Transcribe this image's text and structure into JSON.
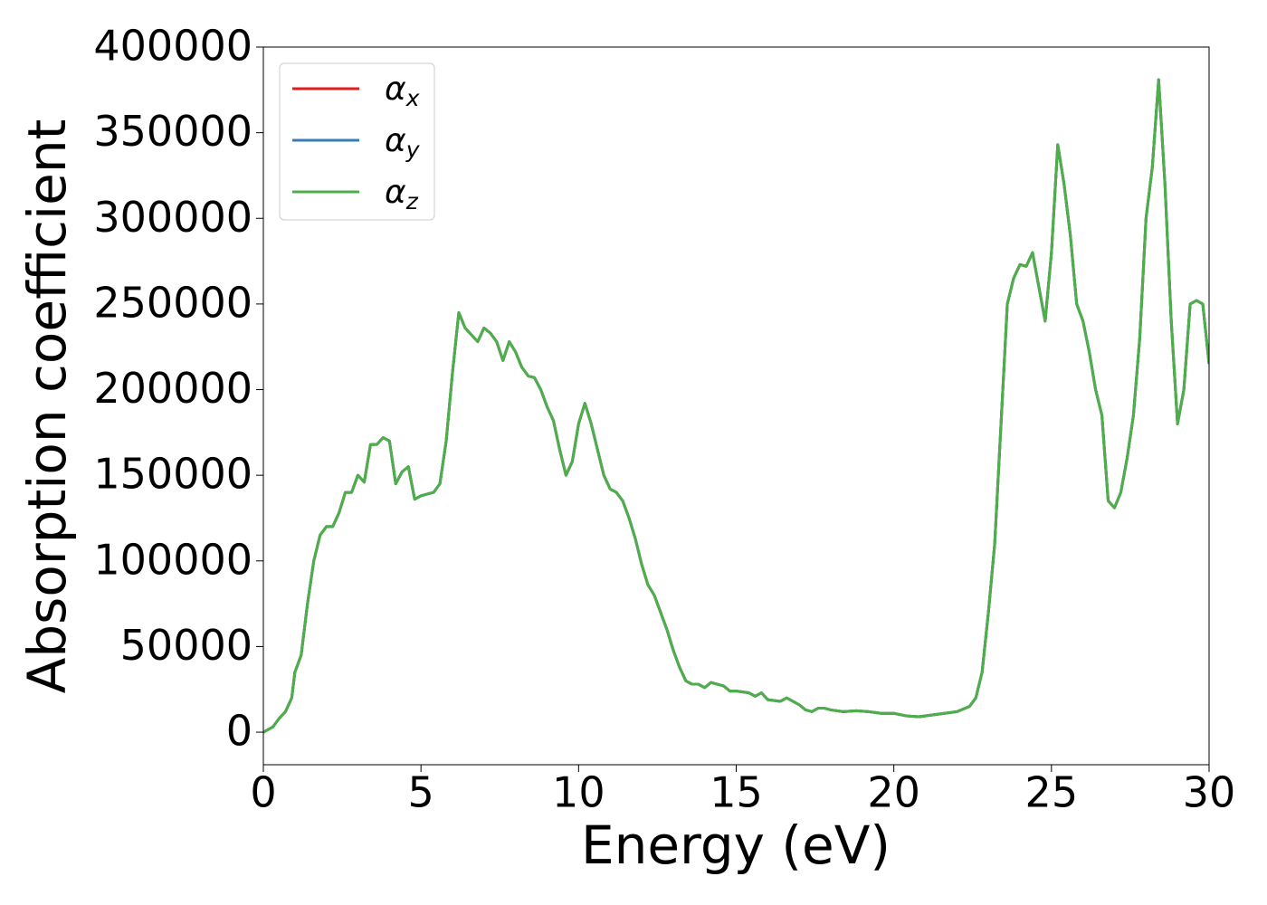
{
  "chart_data": {
    "type": "line",
    "xlabel": "Energy (eV)",
    "ylabel": "Absorption coefficient",
    "x": [
      0,
      0.3,
      0.5,
      0.7,
      0.9,
      1.0,
      1.2,
      1.4,
      1.6,
      1.8,
      2.0,
      2.2,
      2.4,
      2.6,
      2.8,
      3.0,
      3.2,
      3.4,
      3.6,
      3.8,
      4.0,
      4.2,
      4.4,
      4.6,
      4.8,
      5.0,
      5.4,
      5.6,
      5.8,
      6.0,
      6.2,
      6.4,
      6.6,
      6.8,
      7.0,
      7.2,
      7.4,
      7.6,
      7.8,
      8.0,
      8.2,
      8.4,
      8.6,
      8.8,
      9.0,
      9.2,
      9.4,
      9.6,
      9.8,
      10.0,
      10.2,
      10.4,
      10.6,
      10.8,
      11.0,
      11.2,
      11.4,
      11.6,
      11.8,
      12.0,
      12.2,
      12.4,
      12.6,
      12.8,
      13.0,
      13.2,
      13.4,
      13.6,
      13.8,
      14.0,
      14.2,
      14.4,
      14.6,
      14.8,
      15.0,
      15.4,
      15.6,
      15.8,
      16.0,
      16.4,
      16.6,
      16.8,
      17.0,
      17.2,
      17.4,
      17.6,
      17.8,
      18.0,
      18.4,
      18.8,
      19.2,
      19.6,
      20.0,
      20.4,
      20.8,
      21.2,
      21.6,
      22.0,
      22.4,
      22.6,
      22.8,
      23.0,
      23.2,
      23.4,
      23.6,
      23.8,
      24.0,
      24.2,
      24.4,
      24.6,
      24.8,
      25.0,
      25.2,
      25.4,
      25.6,
      25.8,
      26.0,
      26.2,
      26.4,
      26.6,
      26.8,
      27.0,
      27.2,
      27.4,
      27.6,
      27.8,
      28.0,
      28.2,
      28.4,
      28.6,
      28.8,
      29.0,
      29.2,
      29.4,
      29.6,
      29.8,
      30.0
    ],
    "series": [
      {
        "name": "αx",
        "color": "#e41a1c",
        "values": [
          0,
          3000,
          8000,
          12000,
          20000,
          35000,
          45000,
          75000,
          100000,
          115000,
          120000,
          120000,
          128000,
          140000,
          140000,
          150000,
          146000,
          168000,
          168000,
          172000,
          170000,
          145000,
          152000,
          155000,
          136000,
          138000,
          140000,
          145000,
          170000,
          210000,
          245000,
          236000,
          232000,
          228000,
          236000,
          233000,
          228000,
          217000,
          228000,
          222000,
          213000,
          208000,
          207000,
          200000,
          190000,
          182000,
          165000,
          150000,
          158000,
          180000,
          192000,
          180000,
          165000,
          150000,
          142000,
          140000,
          135000,
          125000,
          113000,
          98000,
          86000,
          80000,
          70000,
          60000,
          48000,
          38000,
          30000,
          28000,
          28000,
          26000,
          29000,
          28000,
          27000,
          24000,
          24000,
          23000,
          21000,
          23000,
          19000,
          18000,
          20000,
          18000,
          16000,
          13000,
          12000,
          14000,
          14000,
          13000,
          12000,
          12500,
          12000,
          11000,
          11000,
          9500,
          9000,
          10000,
          11000,
          12000,
          15000,
          20000,
          35000,
          70000,
          110000,
          180000,
          250000,
          265000,
          273000,
          272000,
          280000,
          260000,
          240000,
          280000,
          343000,
          320000,
          290000,
          250000,
          240000,
          222000,
          200000,
          185000,
          135000,
          131000,
          140000,
          160000,
          185000,
          230000,
          300000,
          330000,
          381000,
          320000,
          240000,
          180000,
          200000,
          250000,
          252000,
          250000,
          215000
        ]
      },
      {
        "name": "αy",
        "color": "#377eb8",
        "values": [
          0,
          3000,
          8000,
          12000,
          20000,
          35000,
          45000,
          75000,
          100000,
          115000,
          120000,
          120000,
          128000,
          140000,
          140000,
          150000,
          146000,
          168000,
          168000,
          172000,
          170000,
          145000,
          152000,
          155000,
          136000,
          138000,
          140000,
          145000,
          170000,
          210000,
          245000,
          236000,
          232000,
          228000,
          236000,
          233000,
          228000,
          217000,
          228000,
          222000,
          213000,
          208000,
          207000,
          200000,
          190000,
          182000,
          165000,
          150000,
          158000,
          180000,
          192000,
          180000,
          165000,
          150000,
          142000,
          140000,
          135000,
          125000,
          113000,
          98000,
          86000,
          80000,
          70000,
          60000,
          48000,
          38000,
          30000,
          28000,
          28000,
          26000,
          29000,
          28000,
          27000,
          24000,
          24000,
          23000,
          21000,
          23000,
          19000,
          18000,
          20000,
          18000,
          16000,
          13000,
          12000,
          14000,
          14000,
          13000,
          12000,
          12500,
          12000,
          11000,
          11000,
          9500,
          9000,
          10000,
          11000,
          12000,
          15000,
          20000,
          35000,
          70000,
          110000,
          180000,
          250000,
          265000,
          273000,
          272000,
          280000,
          260000,
          240000,
          280000,
          343000,
          320000,
          290000,
          250000,
          240000,
          222000,
          200000,
          185000,
          135000,
          131000,
          140000,
          160000,
          185000,
          230000,
          300000,
          330000,
          381000,
          320000,
          240000,
          180000,
          200000,
          250000,
          252000,
          250000,
          215000
        ]
      },
      {
        "name": "αz",
        "color": "#4daf4a",
        "values": [
          0,
          3000,
          8000,
          12000,
          20000,
          35000,
          45000,
          75000,
          100000,
          115000,
          120000,
          120000,
          128000,
          140000,
          140000,
          150000,
          146000,
          168000,
          168000,
          172000,
          170000,
          145000,
          152000,
          155000,
          136000,
          138000,
          140000,
          145000,
          170000,
          210000,
          245000,
          236000,
          232000,
          228000,
          236000,
          233000,
          228000,
          217000,
          228000,
          222000,
          213000,
          208000,
          207000,
          200000,
          190000,
          182000,
          165000,
          150000,
          158000,
          180000,
          192000,
          180000,
          165000,
          150000,
          142000,
          140000,
          135000,
          125000,
          113000,
          98000,
          86000,
          80000,
          70000,
          60000,
          48000,
          38000,
          30000,
          28000,
          28000,
          26000,
          29000,
          28000,
          27000,
          24000,
          24000,
          23000,
          21000,
          23000,
          19000,
          18000,
          20000,
          18000,
          16000,
          13000,
          12000,
          14000,
          14000,
          13000,
          12000,
          12500,
          12000,
          11000,
          11000,
          9500,
          9000,
          10000,
          11000,
          12000,
          15000,
          20000,
          35000,
          70000,
          110000,
          180000,
          250000,
          265000,
          273000,
          272000,
          280000,
          260000,
          240000,
          280000,
          343000,
          320000,
          290000,
          250000,
          240000,
          222000,
          200000,
          185000,
          135000,
          131000,
          140000,
          160000,
          185000,
          230000,
          300000,
          330000,
          381000,
          320000,
          240000,
          180000,
          200000,
          250000,
          252000,
          250000,
          215000
        ]
      }
    ],
    "xlim": [
      0,
      30
    ],
    "xticks": [
      0,
      5,
      10,
      15,
      20,
      25,
      30
    ],
    "ylim": [
      -19000,
      400000
    ],
    "yticks": [
      0,
      50000,
      100000,
      150000,
      200000,
      250000,
      300000,
      350000,
      400000
    ],
    "grid": false,
    "legend": "upper left"
  }
}
